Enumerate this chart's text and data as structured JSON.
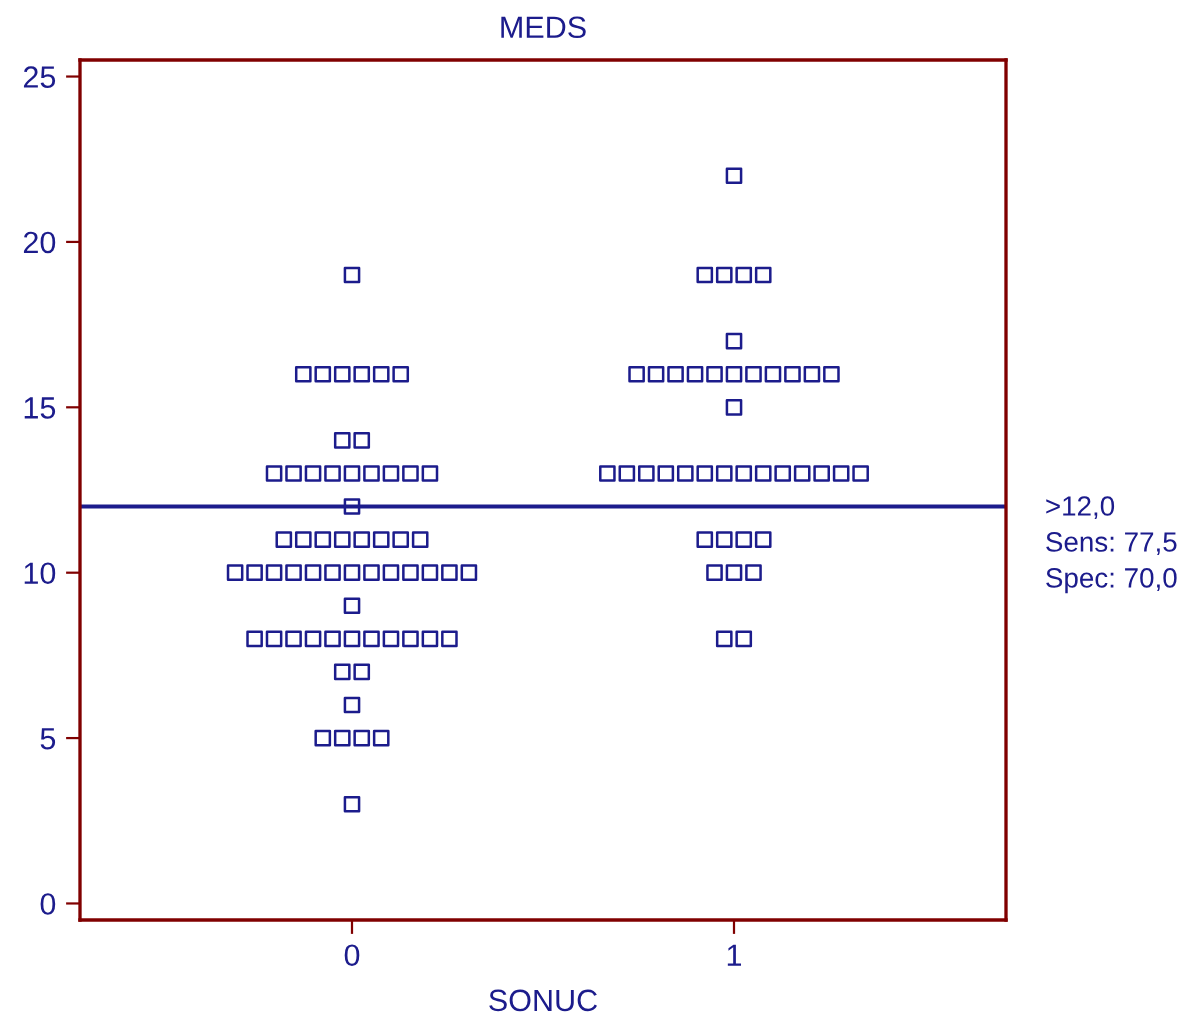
{
  "chart_data": {
    "type": "scatter",
    "title": "MEDS",
    "xlabel": "SONUC",
    "categories": [
      "0",
      "1"
    ],
    "series": [
      {
        "color": "#1c1c8c",
        "x": [
          "0",
          "0",
          "0",
          "0",
          "0",
          "0",
          "0",
          "0",
          "0",
          "0",
          "0",
          "0",
          "0",
          "0",
          "0",
          "0",
          "0",
          "0",
          "0",
          "0",
          "0",
          "0",
          "0",
          "0",
          "0",
          "0",
          "0",
          "0",
          "0",
          "0",
          "0",
          "0",
          "0",
          "0",
          "0",
          "0",
          "0",
          "0",
          "0",
          "0",
          "0",
          "0",
          "0",
          "0",
          "0",
          "0",
          "0",
          "0",
          "0",
          "0",
          "0",
          "0",
          "0",
          "0",
          "0",
          "0",
          "0",
          "0",
          "0",
          "0"
        ],
        "values": [
          19,
          16,
          16,
          16,
          16,
          16,
          16,
          14,
          14,
          13,
          13,
          13,
          13,
          13,
          13,
          13,
          13,
          13,
          12,
          11,
          11,
          11,
          11,
          11,
          11,
          11,
          11,
          10,
          10,
          10,
          10,
          10,
          10,
          10,
          10,
          10,
          10,
          10,
          10,
          10,
          9,
          8,
          8,
          8,
          8,
          8,
          8,
          8,
          8,
          8,
          8,
          8,
          7,
          7,
          6,
          5,
          5,
          5,
          5,
          3
        ]
      },
      {
        "color": "#1c1c8c",
        "x": [
          "1",
          "1",
          "1",
          "1",
          "1",
          "1",
          "1",
          "1",
          "1",
          "1",
          "1",
          "1",
          "1",
          "1",
          "1",
          "1",
          "1",
          "1",
          "1",
          "1",
          "1",
          "1",
          "1",
          "1",
          "1",
          "1",
          "1",
          "1",
          "1",
          "1",
          "1",
          "1",
          "1",
          "1",
          "1",
          "1",
          "1",
          "1",
          "1",
          "1",
          "1"
        ],
        "values": [
          22,
          19,
          19,
          19,
          19,
          17,
          16,
          16,
          16,
          16,
          16,
          16,
          16,
          16,
          16,
          16,
          16,
          15,
          13,
          13,
          13,
          13,
          13,
          13,
          13,
          13,
          13,
          13,
          13,
          13,
          13,
          13,
          11,
          11,
          11,
          11,
          10,
          10,
          10,
          8,
          8
        ]
      }
    ],
    "marker": "square",
    "ylim": [
      -0.5,
      25.5
    ],
    "yticks": [
      0,
      5,
      10,
      15,
      20,
      25
    ],
    "ref_lines": [
      {
        "axis": "y",
        "value": 12,
        "label": ">12,0\nSens: 77,5\nSpec: 70,0",
        "color": "#1c1c8c"
      }
    ],
    "grid": false,
    "legend": false
  }
}
